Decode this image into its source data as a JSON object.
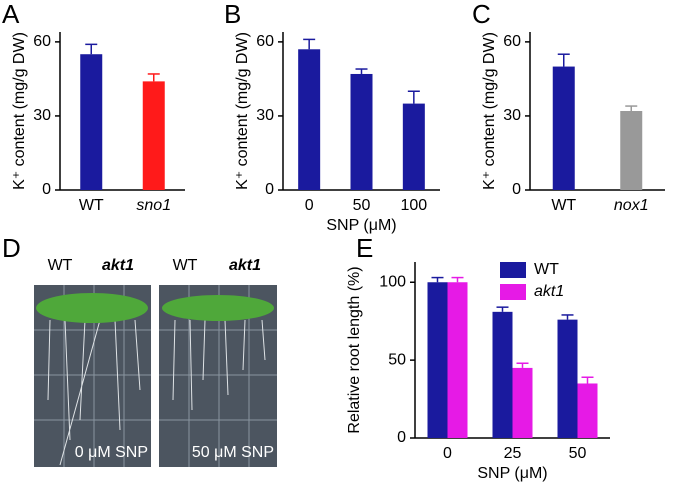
{
  "chart_data": [
    {
      "type": "bar",
      "panel_label": "A",
      "y_label": "K⁺ content (mg/g DW)",
      "categories": [
        "WT",
        "sno1"
      ],
      "category_style": [
        "normal",
        "italic"
      ],
      "series": [
        {
          "colors": [
            "#1a1a9e",
            "#ff1a1a"
          ],
          "values": [
            55,
            44
          ],
          "errors": [
            4,
            3
          ]
        }
      ],
      "ylim": [
        0,
        64
      ],
      "yticks": [
        0,
        30,
        60
      ]
    },
    {
      "type": "bar",
      "panel_label": "B",
      "y_label": "K⁺ content (mg/g DW)",
      "x_label": "SNP (μM)",
      "categories": [
        "0",
        "50",
        "100"
      ],
      "category_style": [
        "normal",
        "normal",
        "normal"
      ],
      "series": [
        {
          "colors": [
            "#1a1a9e",
            "#1a1a9e",
            "#1a1a9e"
          ],
          "values": [
            57,
            47,
            35
          ],
          "errors": [
            4,
            2,
            5
          ]
        }
      ],
      "ylim": [
        0,
        64
      ],
      "yticks": [
        0,
        30,
        60
      ]
    },
    {
      "type": "bar",
      "panel_label": "C",
      "y_label": "K⁺ content (mg/g DW)",
      "categories": [
        "WT",
        "nox1"
      ],
      "category_style": [
        "normal",
        "italic"
      ],
      "series": [
        {
          "colors": [
            "#1a1a9e",
            "#999999"
          ],
          "values": [
            50,
            32
          ],
          "errors": [
            5,
            2
          ]
        }
      ],
      "ylim": [
        0,
        64
      ],
      "yticks": [
        0,
        30,
        60
      ]
    },
    {
      "type": "bar",
      "panel_label": "E",
      "y_label": "Relative root length (%)",
      "x_label": "SNP (μM)",
      "categories": [
        "0",
        "25",
        "50"
      ],
      "category_style": [
        "normal",
        "normal",
        "normal"
      ],
      "series": [
        {
          "name": "WT",
          "name_style": "normal",
          "color": "#1a1a9e",
          "values": [
            100,
            81,
            76
          ],
          "errors": [
            3,
            3,
            3
          ]
        },
        {
          "name": "akt1",
          "name_style": "italic",
          "color": "#e61ae6",
          "values": [
            100,
            45,
            35
          ],
          "errors": [
            3,
            3,
            4
          ]
        }
      ],
      "ylim": [
        0,
        113
      ],
      "yticks": [
        0,
        50,
        100
      ],
      "legend": "top-right"
    }
  ],
  "photo_panel": {
    "panel_label": "D",
    "left": {
      "genotypes": [
        "WT",
        "akt1"
      ],
      "treatment": "0 μM SNP"
    },
    "right": {
      "genotypes": [
        "WT",
        "akt1"
      ],
      "treatment": "50 μM SNP"
    }
  }
}
